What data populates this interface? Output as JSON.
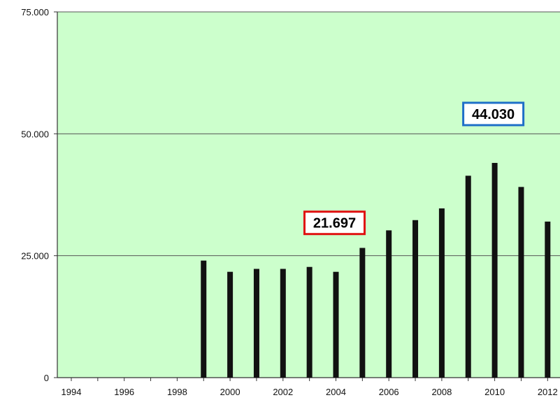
{
  "chart_data": {
    "type": "bar",
    "title": "",
    "xlabel": "",
    "ylabel": "",
    "ylim": [
      0,
      75000
    ],
    "y_ticks": [
      {
        "value": 0,
        "label": "0"
      },
      {
        "value": 25000,
        "label": "25.000"
      },
      {
        "value": 50000,
        "label": "50.000"
      },
      {
        "value": 75000,
        "label": "75.000"
      }
    ],
    "x_tick_labels": [
      "1994",
      "1996",
      "1998",
      "2000",
      "2002",
      "2004",
      "2006",
      "2008",
      "2010",
      "2012"
    ],
    "categories": [
      "1994",
      "1995",
      "1996",
      "1997",
      "1998",
      "1999",
      "2000",
      "2001",
      "2002",
      "2003",
      "2004",
      "2005",
      "2006",
      "2007",
      "2008",
      "2009",
      "2010",
      "2011",
      "2012"
    ],
    "values": [
      null,
      null,
      null,
      null,
      null,
      24000,
      21700,
      22300,
      22300,
      22700,
      21697,
      26600,
      30200,
      32300,
      34700,
      41400,
      44030,
      39100,
      32000
    ],
    "grid": true,
    "plot_background": "#ccffcc",
    "bar_color": "#111111",
    "annotations": [
      {
        "text": "21.697",
        "category": "2004",
        "border_color": "#e01010"
      },
      {
        "text": "44.030",
        "category": "2010",
        "border_color": "#1e6fc8"
      }
    ]
  }
}
